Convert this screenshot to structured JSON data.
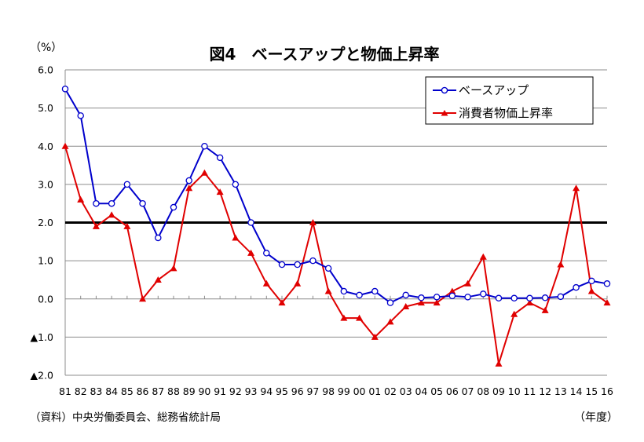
{
  "chart_data": {
    "type": "line",
    "title": "図4　ベースアップと物価上昇率",
    "ylabel": "（%）",
    "xlabel": "（年度）",
    "source": "（資料）中央労働委員会、総務省統計局",
    "ylim": [
      -2.0,
      6.0
    ],
    "yticks": [
      {
        "value": 6.0,
        "label": "6.0"
      },
      {
        "value": 5.0,
        "label": "5.0"
      },
      {
        "value": 4.0,
        "label": "4.0"
      },
      {
        "value": 3.0,
        "label": "3.0"
      },
      {
        "value": 2.0,
        "label": "2.0"
      },
      {
        "value": 1.0,
        "label": "1.0"
      },
      {
        "value": 0.0,
        "label": "0.0"
      },
      {
        "value": -1.0,
        "label": "▲1.0"
      },
      {
        "value": -2.0,
        "label": "▲2.0"
      }
    ],
    "reference_line": 2.0,
    "grid": true,
    "legend_position": "top-right",
    "categories": [
      "81",
      "82",
      "83",
      "84",
      "85",
      "86",
      "87",
      "88",
      "89",
      "90",
      "91",
      "92",
      "93",
      "94",
      "95",
      "96",
      "97",
      "98",
      "99",
      "00",
      "01",
      "02",
      "03",
      "04",
      "05",
      "06",
      "07",
      "08",
      "09",
      "10",
      "11",
      "12",
      "13",
      "14",
      "15",
      "16"
    ],
    "series": [
      {
        "name": "ベースアップ",
        "color": "#0000cc",
        "marker": "circle",
        "values": [
          5.5,
          4.8,
          2.5,
          2.5,
          3.0,
          2.5,
          1.6,
          2.4,
          3.1,
          4.0,
          3.7,
          3.0,
          2.0,
          1.2,
          0.9,
          0.9,
          1.0,
          0.8,
          0.2,
          0.1,
          0.2,
          -0.1,
          0.1,
          0.03,
          0.05,
          0.08,
          0.05,
          0.13,
          0.02,
          0.02,
          0.02,
          0.03,
          0.06,
          0.3,
          0.47,
          0.4
        ]
      },
      {
        "name": "消費者物価上昇率",
        "color": "#e00000",
        "marker": "triangle",
        "values": [
          4.0,
          2.6,
          1.9,
          2.2,
          1.9,
          0.0,
          0.5,
          0.8,
          2.9,
          3.3,
          2.8,
          1.6,
          1.2,
          0.4,
          -0.1,
          0.4,
          2.0,
          0.2,
          -0.5,
          -0.5,
          -1.0,
          -0.6,
          -0.2,
          -0.1,
          -0.1,
          0.2,
          0.4,
          1.1,
          -1.7,
          -0.4,
          -0.1,
          -0.3,
          0.9,
          2.9,
          0.2,
          -0.1
        ]
      }
    ]
  }
}
